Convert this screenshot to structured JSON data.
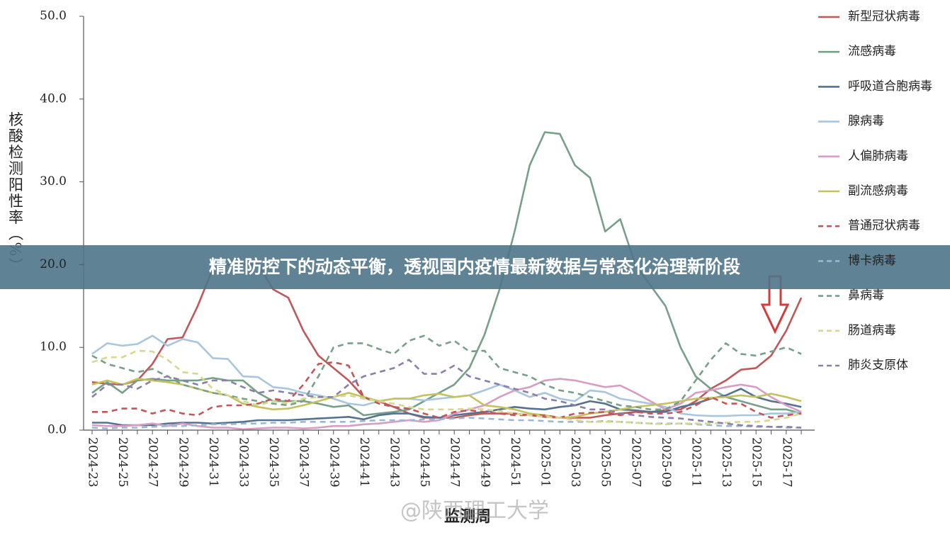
{
  "chart_data": {
    "type": "line",
    "title": "精准防控下的动态平衡，透视国内疫情最新数据与常态化治理新阶段",
    "y_label": "核酸检测阳性率（%）",
    "x_label": "监测周",
    "watermark": "@陕西理工大学",
    "categories": [
      "2024-23",
      null,
      "2024-25",
      null,
      "2024-27",
      null,
      "2024-29",
      null,
      "2024-31",
      null,
      "2024-33",
      null,
      "2024-35",
      null,
      "2024-37",
      null,
      "2024-39",
      null,
      "2024-41",
      null,
      "2024-43",
      null,
      "2024-45",
      null,
      "2024-47",
      null,
      "2024-49",
      null,
      "2024-51",
      null,
      "2025-01",
      null,
      "2025-03",
      null,
      "2025-05",
      null,
      "2025-07",
      null,
      "2025-09",
      null,
      "2025-11",
      null,
      "2025-13",
      null,
      "2025-15",
      null,
      "2025-17",
      null
    ],
    "ylim": [
      0,
      50
    ],
    "yticks": [
      {
        "value": 0,
        "label": "0.0"
      },
      {
        "value": 10,
        "label": "10.0"
      },
      {
        "value": 20,
        "label": "20.0"
      },
      {
        "value": 30,
        "label": "30.0"
      },
      {
        "value": 40,
        "label": "40.0"
      },
      {
        "value": 50,
        "label": "50.0"
      }
    ],
    "series": [
      {
        "name": "新型冠状病毒",
        "color": "#c0585a",
        "dashed": false,
        "values": [
          5.8,
          5.6,
          5.5,
          6,
          8,
          11,
          11.2,
          15,
          19.5,
          20,
          20,
          20,
          17,
          16,
          12,
          9,
          7.5,
          6,
          4,
          3.5,
          2.8,
          2,
          1.5,
          1.5,
          1.5,
          1.8,
          2,
          2,
          2,
          1.8,
          1.6,
          1.5,
          1.5,
          1.5,
          1.8,
          2,
          2.2,
          2.2,
          2.4,
          2.5,
          3.5,
          5,
          6,
          7.3,
          7.5,
          9,
          12,
          16
        ]
      },
      {
        "name": "流感病毒",
        "color": "#76a088",
        "dashed": false,
        "values": [
          4.5,
          5.8,
          4.5,
          6,
          6.2,
          6,
          6,
          6,
          6.3,
          6,
          6,
          4.5,
          3.5,
          3.5,
          3.5,
          3.2,
          2.8,
          3,
          1.8,
          2,
          2.2,
          2.5,
          3.5,
          4.5,
          5.5,
          7.5,
          11.5,
          17,
          24,
          32,
          36,
          35.8,
          32,
          30.5,
          24,
          25.5,
          20,
          17.5,
          15,
          10,
          6.5,
          5,
          4,
          3.5,
          3,
          2.5,
          2.5,
          2
        ]
      },
      {
        "name": "呼吸道合胞病毒",
        "color": "#557290",
        "dashed": false,
        "values": [
          0.9,
          0.9,
          0.6,
          0.6,
          0.6,
          0.8,
          0.9,
          0.9,
          0.8,
          0.9,
          1.0,
          1.2,
          1.2,
          1.2,
          1.3,
          1.4,
          1.5,
          1.6,
          1.3,
          1.8,
          2.0,
          2.0,
          1.6,
          1.5,
          1.8,
          2.0,
          2.2,
          2.5,
          2.8,
          2.6,
          2.5,
          2.8,
          3.0,
          3.5,
          3.2,
          2.5,
          2.4,
          2.2,
          2.2,
          2.8,
          3.2,
          3.8,
          4.2,
          5.0,
          4.0,
          3.5,
          3.2,
          2.8
        ]
      },
      {
        "name": "腺病毒",
        "color": "#a8c6de",
        "dashed": false,
        "values": [
          9.2,
          10.5,
          10.2,
          10.4,
          11.4,
          10.2,
          11.0,
          10.6,
          8.7,
          8.6,
          6.5,
          6.4,
          5.2,
          5.0,
          4.5,
          4.2,
          3.8,
          3.2,
          3.0,
          3.5,
          3.8,
          3.8,
          3.6,
          3.8,
          4.0,
          4.2,
          4.8,
          5.5,
          4.8,
          4.0,
          4.5,
          3.8,
          3.5,
          4.8,
          4.6,
          3.8,
          3.5,
          3.2,
          2.8,
          2.0,
          1.8,
          1.7,
          1.7,
          1.8,
          1.8,
          2.0,
          2.0,
          2.2
        ]
      },
      {
        "name": "人偏肺病毒",
        "color": "#d89dc2",
        "dashed": false,
        "values": [
          0.6,
          0.5,
          0.5,
          0.6,
          0.8,
          0.5,
          0.8,
          0.5,
          0.3,
          0.3,
          0.1,
          0.2,
          0.3,
          0.3,
          0.2,
          0.3,
          0.5,
          0.5,
          0.7,
          0.8,
          1.0,
          1.2,
          1.0,
          1.2,
          2.0,
          2.5,
          3.0,
          4.0,
          4.8,
          5.2,
          6.0,
          6.2,
          6.0,
          5.6,
          5.2,
          5.4,
          4.5,
          3.5,
          2.5,
          3.2,
          4.5,
          4.8,
          5.2,
          5.5,
          5.2,
          4.0,
          3.0,
          2.2
        ]
      },
      {
        "name": "副流感病毒",
        "color": "#c4c25e",
        "dashed": false,
        "values": [
          5.5,
          6.0,
          5.5,
          6.2,
          6.0,
          5.8,
          5.5,
          5.0,
          4.5,
          4.2,
          3.2,
          2.8,
          2.5,
          2.6,
          3.0,
          3.5,
          4.0,
          4.5,
          4.0,
          3.5,
          3.8,
          3.8,
          4.2,
          4.4,
          4.0,
          4.2,
          3.0,
          2.8,
          2.5,
          2.0,
          1.8,
          1.5,
          1.6,
          2.0,
          2.2,
          2.5,
          2.8,
          3.0,
          3.2,
          3.5,
          3.8,
          3.9,
          4.0,
          4.2,
          4.0,
          4.4,
          4.0,
          3.5
        ]
      },
      {
        "name": "普通冠状病毒",
        "color": "#c0585a",
        "dashed": true,
        "values": [
          2.2,
          2.2,
          2.6,
          2.6,
          2.0,
          2.5,
          2.0,
          1.8,
          2.8,
          3.0,
          3.0,
          3.2,
          3.8,
          3.5,
          5.5,
          8.0,
          8.2,
          7.8,
          4.0,
          3.2,
          2.8,
          2.6,
          2.0,
          1.5,
          2.2,
          2.4,
          2.2,
          2.0,
          1.8,
          1.8,
          1.8,
          1.5,
          2.0,
          2.1,
          2.2,
          1.8,
          2.2,
          2.0,
          2.0,
          2.2,
          3.0,
          4.0,
          3.2,
          3.2,
          2.2,
          1.5,
          1.8,
          2.0
        ]
      },
      {
        "name": "博卡病毒",
        "color": "#9ab8d4",
        "dashed": true,
        "values": [
          0.3,
          0.2,
          0.3,
          0.3,
          0.4,
          0.5,
          0.5,
          0.6,
          0.7,
          0.7,
          0.8,
          0.8,
          0.9,
          0.9,
          1.0,
          1.0,
          1.0,
          1.0,
          1.1,
          1.2,
          1.2,
          1.2,
          1.3,
          1.3,
          1.4,
          1.5,
          1.4,
          1.3,
          1.2,
          1.2,
          1.1,
          1.0,
          1.0,
          1.0,
          1.1,
          1.0,
          0.9,
          0.8,
          0.8,
          0.8,
          0.7,
          0.6,
          0.5,
          0.5,
          0.4,
          0.4,
          0.3,
          0.3
        ]
      },
      {
        "name": "鼻病毒",
        "color": "#76a088",
        "dashed": true,
        "values": [
          9.0,
          8.0,
          7.5,
          7.0,
          7.4,
          6.5,
          5.5,
          5.0,
          4.5,
          4.2,
          3.8,
          3.5,
          3.2,
          3.0,
          3.5,
          6.5,
          10.0,
          10.5,
          10.5,
          9.8,
          9.2,
          10.8,
          11.4,
          10.2,
          10.8,
          9.5,
          9.6,
          7.5,
          7.0,
          6.5,
          5.5,
          4.8,
          4.5,
          4.0,
          3.5,
          3.0,
          2.8,
          2.5,
          2.5,
          3.5,
          6.0,
          8.5,
          10.5,
          9.2,
          9.0,
          9.5,
          10.0,
          9.2
        ]
      },
      {
        "name": "肠道病毒",
        "color": "#d8d78e",
        "dashed": true,
        "values": [
          8.2,
          8.8,
          8.8,
          9.6,
          9.5,
          8.5,
          7.0,
          6.8,
          5.0,
          4.2,
          3.5,
          3.0,
          3.5,
          3.2,
          3.8,
          4.0,
          4.0,
          4.2,
          3.8,
          3.5,
          3.2,
          2.8,
          2.5,
          2.5,
          2.5,
          2.6,
          2.5,
          2.3,
          2.0,
          1.8,
          1.6,
          1.5,
          1.2,
          1.0,
          1.0,
          1.0,
          0.9,
          0.8,
          0.7,
          0.8,
          0.8,
          0.8,
          0.9,
          1.0,
          1.0,
          1.2,
          1.5,
          2.0
        ]
      },
      {
        "name": "肺炎支原体",
        "color": "#8c7eaa",
        "dashed": true,
        "values": [
          4.0,
          5.5,
          5.5,
          5.0,
          6.0,
          6.5,
          6.0,
          5.5,
          6.0,
          6.0,
          5.2,
          4.5,
          4.8,
          4.5,
          4.2,
          4.0,
          4.0,
          5.5,
          6.5,
          7.0,
          7.5,
          8.5,
          6.8,
          6.8,
          7.8,
          6.5,
          6.0,
          5.5,
          5.0,
          4.5,
          3.8,
          3.5,
          3.0,
          2.5,
          2.5,
          2.0,
          1.8,
          1.6,
          1.5,
          1.4,
          1.2,
          1.0,
          0.8,
          0.6,
          0.5,
          0.4,
          0.4,
          0.3
        ]
      }
    ]
  }
}
